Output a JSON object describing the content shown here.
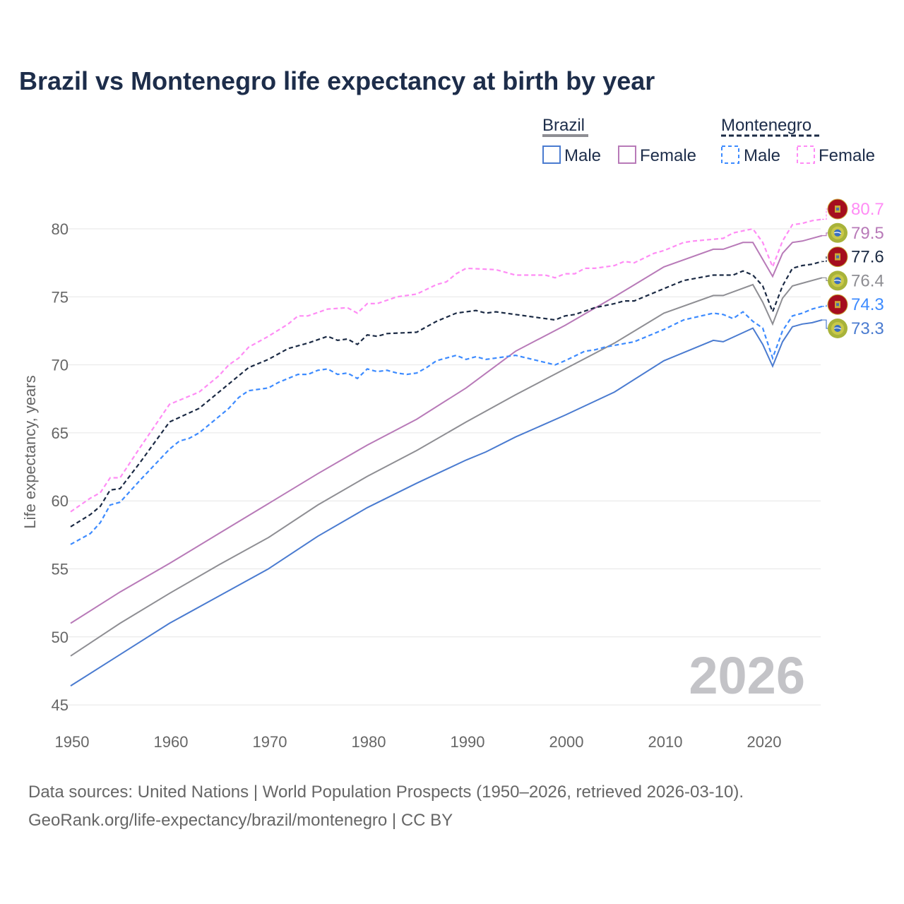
{
  "title": "Brazil vs Montenegro life expectancy at birth by year",
  "legend": {
    "groups": [
      {
        "name": "Brazil",
        "items": [
          "Male",
          "Female"
        ]
      },
      {
        "name": "Montenegro",
        "items": [
          "Male",
          "Female"
        ]
      }
    ]
  },
  "year_watermark": "2026",
  "sources": {
    "line1": "Data sources: United Nations | World Population Prospects (1950–2026, retrieved 2026-03-10).",
    "line2": "GeoRank.org/life-expectancy/brazil/montenegro | CC BY"
  },
  "chart_data": {
    "type": "line",
    "title": "Brazil vs Montenegro life expectancy at birth by year",
    "xlabel": "",
    "ylabel": "Life expectancy, years",
    "xlim": [
      1950,
      2026
    ],
    "ylim": [
      45,
      82
    ],
    "xticks": [
      1950,
      1960,
      1970,
      1980,
      1990,
      2000,
      2010,
      2020
    ],
    "yticks": [
      45,
      50,
      55,
      60,
      65,
      70,
      75,
      80
    ],
    "grid": true,
    "legend_position": "top-right",
    "series": [
      {
        "name": "Montenegro Female",
        "country": "Montenegro",
        "color": "#ff8cf5",
        "dashed": true,
        "end_label": "80.7",
        "x": [
          1950,
          1952,
          1953,
          1954,
          1955,
          1957,
          1960,
          1962,
          1963,
          1965,
          1966,
          1967,
          1968,
          1970,
          1972,
          1973,
          1974,
          1976,
          1978,
          1979,
          1980,
          1981,
          1983,
          1985,
          1987,
          1988,
          1989,
          1990,
          1993,
          1995,
          1998,
          1999,
          2000,
          2001,
          2002,
          2003,
          2005,
          2006,
          2007,
          2009,
          2010,
          2012,
          2013,
          2016,
          2017,
          2019,
          2020,
          2021,
          2022,
          2023,
          2024,
          2025,
          2026
        ],
        "y": [
          59.2,
          60.2,
          60.6,
          61.7,
          61.7,
          63.9,
          67.1,
          67.7,
          68.0,
          69.2,
          70.0,
          70.5,
          71.3,
          72.1,
          73.0,
          73.6,
          73.6,
          74.1,
          74.2,
          73.8,
          74.5,
          74.5,
          75.0,
          75.2,
          75.9,
          76.1,
          76.7,
          77.1,
          77.0,
          76.6,
          76.6,
          76.4,
          76.7,
          76.7,
          77.1,
          77.1,
          77.3,
          77.6,
          77.5,
          78.2,
          78.4,
          79.0,
          79.1,
          79.3,
          79.7,
          80.0,
          79.0,
          77.2,
          79.1,
          80.3,
          80.4,
          80.6,
          80.7
        ]
      },
      {
        "name": "Brazil Female",
        "country": "Brazil",
        "color": "#b87ab8",
        "dashed": false,
        "end_label": "79.5",
        "x": [
          1950,
          1955,
          1960,
          1965,
          1970,
          1975,
          1980,
          1985,
          1990,
          1995,
          2000,
          2005,
          2010,
          2015,
          2016,
          2018,
          2019,
          2021,
          2022,
          2023,
          2024,
          2026
        ],
        "y": [
          51.0,
          53.3,
          55.4,
          57.6,
          59.8,
          62.0,
          64.1,
          66.0,
          68.3,
          71.0,
          72.9,
          75.0,
          77.2,
          78.5,
          78.5,
          79.0,
          79.0,
          76.5,
          78.2,
          79.0,
          79.1,
          79.5
        ]
      },
      {
        "name": "Montenegro",
        "country": "Montenegro",
        "color": "#1b2a44",
        "dashed": true,
        "end_label": "77.6",
        "x": [
          1950,
          1952,
          1953,
          1954,
          1955,
          1957,
          1960,
          1963,
          1966,
          1968,
          1970,
          1972,
          1974,
          1976,
          1977,
          1978,
          1979,
          1980,
          1981,
          1982,
          1985,
          1987,
          1989,
          1991,
          1992,
          1993,
          1999,
          2000,
          2001,
          2003,
          2005,
          2006,
          2007,
          2010,
          2012,
          2015,
          2017,
          2018,
          2019,
          2020,
          2021,
          2022,
          2023,
          2024,
          2025,
          2026
        ],
        "y": [
          58.1,
          59.0,
          59.6,
          60.8,
          60.9,
          62.8,
          65.8,
          66.8,
          68.6,
          69.8,
          70.4,
          71.2,
          71.6,
          72.1,
          71.8,
          71.9,
          71.5,
          72.2,
          72.1,
          72.3,
          72.4,
          73.2,
          73.8,
          74.0,
          73.8,
          73.9,
          73.3,
          73.6,
          73.7,
          74.2,
          74.5,
          74.7,
          74.7,
          75.6,
          76.2,
          76.6,
          76.6,
          76.9,
          76.6,
          75.8,
          73.9,
          75.8,
          77.1,
          77.3,
          77.4,
          77.6
        ]
      },
      {
        "name": "Brazil",
        "country": "Brazil",
        "color": "#8e8e93",
        "dashed": false,
        "end_label": "76.4",
        "x": [
          1950,
          1955,
          1960,
          1965,
          1970,
          1975,
          1980,
          1985,
          1990,
          1995,
          2000,
          2005,
          2010,
          2015,
          2016,
          2019,
          2020,
          2021,
          2022,
          2023,
          2024,
          2026
        ],
        "y": [
          48.6,
          51.0,
          53.2,
          55.3,
          57.3,
          59.7,
          61.8,
          63.7,
          65.8,
          67.8,
          69.7,
          71.6,
          73.8,
          75.1,
          75.1,
          75.9,
          74.6,
          73.0,
          74.9,
          75.8,
          76.0,
          76.4
        ]
      },
      {
        "name": "Montenegro Male",
        "country": "Montenegro",
        "color": "#3d8bff",
        "dashed": true,
        "end_label": "74.3",
        "x": [
          1950,
          1952,
          1953,
          1954,
          1955,
          1957,
          1960,
          1961,
          1962,
          1963,
          1965,
          1966,
          1967,
          1968,
          1970,
          1971,
          1973,
          1974,
          1975,
          1976,
          1977,
          1978,
          1979,
          1980,
          1981,
          1982,
          1983,
          1984,
          1985,
          1986,
          1987,
          1989,
          1990,
          1991,
          1992,
          1995,
          1999,
          2000,
          2002,
          2003,
          2004,
          2007,
          2010,
          2012,
          2015,
          2016,
          2017,
          2018,
          2019,
          2020,
          2021,
          2022,
          2023,
          2024,
          2025,
          2026
        ],
        "y": [
          56.8,
          57.6,
          58.4,
          59.7,
          59.9,
          61.5,
          63.8,
          64.4,
          64.6,
          65.0,
          66.2,
          66.8,
          67.6,
          68.1,
          68.3,
          68.7,
          69.3,
          69.3,
          69.6,
          69.7,
          69.3,
          69.4,
          69.0,
          69.7,
          69.5,
          69.6,
          69.4,
          69.3,
          69.4,
          69.8,
          70.3,
          70.7,
          70.4,
          70.6,
          70.4,
          70.7,
          70.0,
          70.3,
          71.0,
          71.1,
          71.3,
          71.7,
          72.6,
          73.3,
          73.8,
          73.7,
          73.4,
          73.9,
          73.2,
          72.7,
          70.5,
          72.5,
          73.6,
          73.8,
          74.1,
          74.3
        ]
      },
      {
        "name": "Brazil Male",
        "country": "Brazil",
        "color": "#4a7bd0",
        "dashed": false,
        "end_label": "73.3",
        "x": [
          1950,
          1955,
          1960,
          1965,
          1970,
          1975,
          1980,
          1985,
          1990,
          1992,
          1995,
          2000,
          2005,
          2010,
          2015,
          2016,
          2019,
          2020,
          2021,
          2022,
          2023,
          2024,
          2025,
          2026
        ],
        "y": [
          46.4,
          48.7,
          51.0,
          53.0,
          55.0,
          57.4,
          59.5,
          61.3,
          63.0,
          63.6,
          64.7,
          66.3,
          68.0,
          70.3,
          71.8,
          71.7,
          72.7,
          71.5,
          69.9,
          71.7,
          72.8,
          73.0,
          73.1,
          73.3
        ]
      }
    ]
  }
}
